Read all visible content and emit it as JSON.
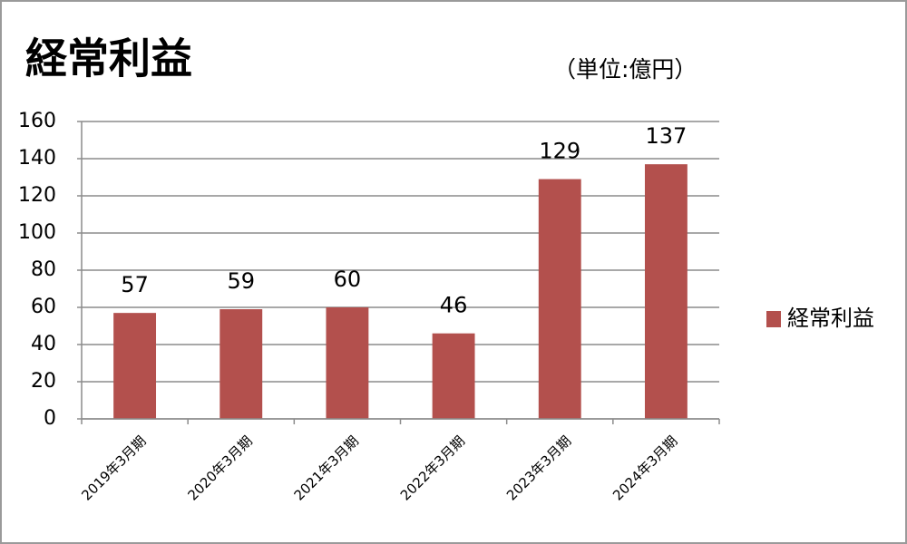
{
  "chart_data": {
    "type": "bar",
    "title": "経常利益",
    "subtitle": "（単位:億円）",
    "categories": [
      "2019年3月期",
      "2020年3月期",
      "2021年3月期",
      "2022年3月期",
      "2023年3月期",
      "2024年3月期"
    ],
    "series": [
      {
        "name": "経常利益",
        "color": "#b3504d",
        "values": [
          57,
          59,
          60,
          46,
          129,
          137
        ]
      }
    ],
    "ylim": [
      0,
      160
    ],
    "yticks": [
      0,
      20,
      40,
      60,
      80,
      100,
      120,
      140,
      160
    ],
    "grid": true,
    "legend": "right"
  }
}
